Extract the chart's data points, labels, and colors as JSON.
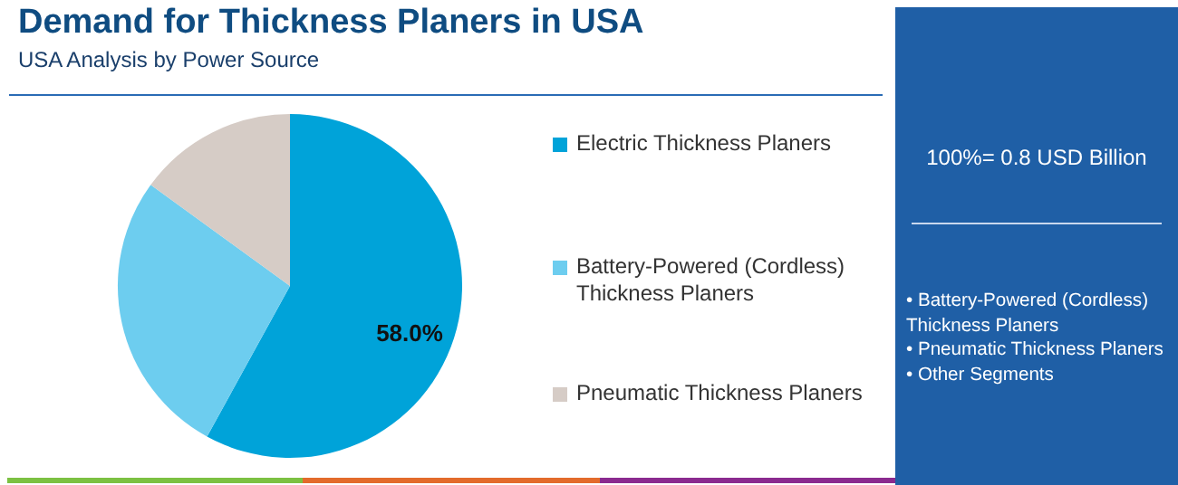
{
  "chart_data": {
    "type": "pie",
    "title": "Demand for Thickness Planers in USA",
    "subtitle": "USA Analysis by Power Source",
    "categories": [
      "Electric Thickness Planers",
      "Battery-Powered (Cordless) Thickness Planers",
      "Pneumatic Thickness Planers"
    ],
    "values": [
      58,
      27,
      15
    ],
    "colors": [
      "#00a3d9",
      "#6dcdef",
      "#d6ccc6"
    ],
    "value_labels": [
      "58.0%",
      null,
      null
    ],
    "legend": "right",
    "annotations": [
      "100%= 0.8 USD Billion",
      "• Battery-Powered (Cordless) Thickness Planers",
      "• Pneumatic Thickness Planers",
      "• Other Segments"
    ]
  }
}
